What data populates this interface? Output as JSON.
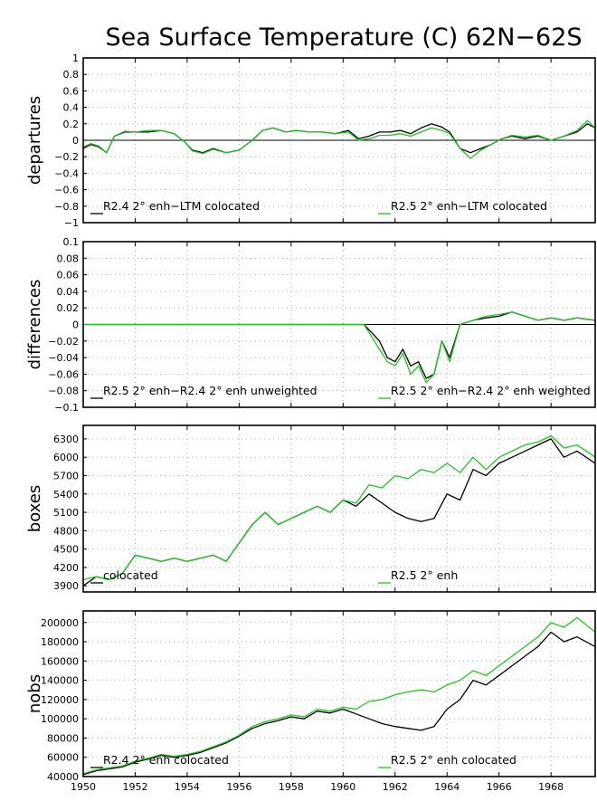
{
  "title": "Sea Surface Temperature (C) 62N−62S",
  "colors": {
    "s1": "#000000",
    "s2": "#22c422",
    "grid": "#9a9a9a"
  },
  "x_ticks": [
    "1950",
    "1952",
    "1954",
    "1956",
    "1958",
    "1960",
    "1962",
    "1964",
    "1966",
    "1968"
  ],
  "chart_data": [
    {
      "type": "line",
      "ylabel": "departures",
      "ylim": [
        -1,
        1
      ],
      "xlim": [
        1950,
        1969.7
      ],
      "yticks": [
        "1",
        "0.8",
        "0.6",
        "0.4",
        "0.2",
        "0",
        "−0.2",
        "−0.4",
        "−0.6",
        "−0.8",
        "−1"
      ],
      "yvals": [
        1,
        0.8,
        0.6,
        0.4,
        0.2,
        0,
        -0.2,
        -0.4,
        -0.6,
        -0.8,
        -1
      ],
      "zero_line": true,
      "grid": true,
      "series": [
        {
          "name": "R2.4 2° enh−LTM colocated",
          "x": [
            1950,
            1950.3,
            1950.6,
            1950.9,
            1951.2,
            1951.6,
            1952,
            1952.5,
            1953,
            1953.5,
            1953.9,
            1954.2,
            1954.6,
            1955,
            1955.5,
            1956,
            1956.5,
            1956.9,
            1957.3,
            1957.8,
            1958.2,
            1958.7,
            1959.2,
            1959.7,
            1960.2,
            1960.6,
            1961,
            1961.4,
            1961.8,
            1962.2,
            1962.6,
            1963,
            1963.4,
            1963.8,
            1964.1,
            1964.5,
            1964.9,
            1965.3,
            1965.7,
            1966.1,
            1966.5,
            1967,
            1967.5,
            1968,
            1968.5,
            1969,
            1969.4,
            1969.7
          ],
          "values": [
            -0.1,
            -0.05,
            -0.08,
            -0.15,
            0.05,
            0.1,
            0.1,
            0.1,
            0.12,
            0.08,
            -0.02,
            -0.12,
            -0.15,
            -0.1,
            -0.15,
            -0.12,
            0.0,
            0.12,
            0.15,
            0.1,
            0.12,
            0.1,
            0.1,
            0.08,
            0.12,
            0.02,
            0.05,
            0.1,
            0.1,
            0.12,
            0.08,
            0.15,
            0.2,
            0.16,
            0.1,
            -0.1,
            -0.15,
            -0.1,
            -0.05,
            0.02,
            0.05,
            0.02,
            0.05,
            0.0,
            0.05,
            0.1,
            0.2,
            0.15
          ]
        },
        {
          "name": "R2.5 2° enh−LTM colocated",
          "x": [
            1950,
            1950.3,
            1950.6,
            1950.9,
            1951.2,
            1951.6,
            1952,
            1952.5,
            1953,
            1953.5,
            1953.9,
            1954.2,
            1954.6,
            1955,
            1955.5,
            1956,
            1956.5,
            1956.9,
            1957.3,
            1957.8,
            1958.2,
            1958.7,
            1959.2,
            1959.7,
            1960.2,
            1960.6,
            1961,
            1961.4,
            1961.8,
            1962.2,
            1962.6,
            1963,
            1963.4,
            1963.8,
            1964.1,
            1964.5,
            1964.9,
            1965.3,
            1965.7,
            1966.1,
            1966.5,
            1967,
            1967.5,
            1968,
            1968.5,
            1969,
            1969.4,
            1969.7
          ],
          "values": [
            -0.08,
            -0.04,
            -0.07,
            -0.15,
            0.05,
            0.11,
            0.1,
            0.12,
            0.12,
            0.08,
            -0.02,
            -0.13,
            -0.16,
            -0.11,
            -0.15,
            -0.12,
            0.0,
            0.12,
            0.15,
            0.1,
            0.12,
            0.1,
            0.1,
            0.08,
            0.1,
            0.0,
            0.02,
            0.06,
            0.06,
            0.08,
            0.05,
            0.1,
            0.15,
            0.12,
            0.08,
            -0.1,
            -0.22,
            -0.12,
            -0.05,
            0.02,
            0.06,
            0.04,
            0.06,
            0.0,
            0.05,
            0.12,
            0.24,
            0.15
          ]
        }
      ]
    },
    {
      "type": "line",
      "ylabel": "differences",
      "ylim": [
        -0.1,
        0.1
      ],
      "xlim": [
        1950,
        1969.7
      ],
      "yticks": [
        "0.1",
        "0.08",
        "0.06",
        "0.04",
        "0.02",
        "0",
        "−0.02",
        "−0.04",
        "−0.06",
        "−0.08",
        "−0.1"
      ],
      "yvals": [
        0.1,
        0.08,
        0.06,
        0.04,
        0.02,
        0,
        -0.02,
        -0.04,
        -0.06,
        -0.08,
        -0.1
      ],
      "zero_line": true,
      "grid": true,
      "series": [
        {
          "name": "R2.5 2° enh−R2.4 2° enh unweighted",
          "x": [
            1950,
            1951,
            1952,
            1953,
            1954,
            1955,
            1956,
            1957,
            1958,
            1959,
            1960,
            1960.8,
            1961.1,
            1961.4,
            1961.7,
            1962,
            1962.3,
            1962.6,
            1962.9,
            1963.2,
            1963.5,
            1963.8,
            1964.1,
            1964.5,
            1965,
            1965.5,
            1966,
            1966.5,
            1967,
            1967.5,
            1968,
            1968.5,
            1969,
            1969.7
          ],
          "values": [
            0.0,
            0.0,
            0.0,
            0.0,
            0.0,
            0.0,
            0.0,
            0.0,
            0.0,
            0.0,
            0.0,
            0.0,
            -0.01,
            -0.02,
            -0.04,
            -0.045,
            -0.03,
            -0.05,
            -0.045,
            -0.065,
            -0.06,
            -0.02,
            -0.04,
            0.0,
            0.005,
            0.008,
            0.01,
            0.015,
            0.01,
            0.005,
            0.008,
            0.005,
            0.008,
            0.005
          ]
        },
        {
          "name": "R2.5 2° enh−R2.4 2° enh weighted",
          "x": [
            1950,
            1951,
            1952,
            1953,
            1954,
            1955,
            1956,
            1957,
            1958,
            1959,
            1960,
            1960.8,
            1961.1,
            1961.4,
            1961.7,
            1962,
            1962.3,
            1962.6,
            1962.9,
            1963.2,
            1963.5,
            1963.8,
            1964.1,
            1964.5,
            1965,
            1965.5,
            1966,
            1966.5,
            1967,
            1967.5,
            1968,
            1968.5,
            1969,
            1969.7
          ],
          "values": [
            0.0,
            0.0,
            0.0,
            0.0,
            0.0,
            0.0,
            0.0,
            0.0,
            0.0,
            0.0,
            0.0,
            0.0,
            -0.015,
            -0.03,
            -0.045,
            -0.05,
            -0.035,
            -0.06,
            -0.05,
            -0.07,
            -0.06,
            -0.02,
            -0.045,
            0.0,
            0.005,
            0.01,
            0.012,
            0.015,
            0.01,
            0.005,
            0.008,
            0.005,
            0.008,
            0.005
          ]
        }
      ]
    },
    {
      "type": "line",
      "ylabel": "boxes",
      "ylim": [
        3800,
        6520
      ],
      "xlim": [
        1950,
        1969.7
      ],
      "yticks": [
        "6300",
        "6000",
        "5700",
        "5400",
        "5100",
        "4800",
        "4500",
        "4200",
        "3900"
      ],
      "yvals": [
        6300,
        6000,
        5700,
        5400,
        5100,
        4800,
        4500,
        4200,
        3900
      ],
      "zero_line": false,
      "grid": true,
      "series": [
        {
          "name": "colocated",
          "x": [
            1950,
            1950.5,
            1951,
            1951.5,
            1952,
            1952.5,
            1953,
            1953.5,
            1954,
            1954.5,
            1955,
            1955.5,
            1956,
            1956.5,
            1957,
            1957.5,
            1958,
            1958.5,
            1959,
            1959.5,
            1960,
            1960.5,
            1961,
            1961.5,
            1962,
            1962.5,
            1963,
            1963.5,
            1964,
            1964.5,
            1965,
            1965.5,
            1966,
            1966.5,
            1967,
            1967.5,
            1968,
            1968.5,
            1969,
            1969.7
          ],
          "values": [
            3900,
            4050,
            4000,
            4100,
            4400,
            4350,
            4300,
            4350,
            4300,
            4350,
            4400,
            4300,
            4600,
            4900,
            5100,
            4900,
            5000,
            5100,
            5200,
            5100,
            5300,
            5200,
            5400,
            5250,
            5100,
            5000,
            4950,
            5000,
            5400,
            5300,
            5800,
            5700,
            5900,
            6000,
            6100,
            6200,
            6300,
            6000,
            6100,
            5900
          ]
        },
        {
          "name": "R2.5 2° enh",
          "x": [
            1950,
            1950.5,
            1951,
            1951.5,
            1952,
            1952.5,
            1953,
            1953.5,
            1954,
            1954.5,
            1955,
            1955.5,
            1956,
            1956.5,
            1957,
            1957.5,
            1958,
            1958.5,
            1959,
            1959.5,
            1960,
            1960.5,
            1961,
            1961.5,
            1962,
            1962.5,
            1963,
            1963.5,
            1964,
            1964.5,
            1965,
            1965.5,
            1966,
            1966.5,
            1967,
            1967.5,
            1968,
            1968.5,
            1969,
            1969.7
          ],
          "values": [
            4000,
            4050,
            4000,
            4100,
            4400,
            4350,
            4300,
            4350,
            4300,
            4350,
            4400,
            4300,
            4600,
            4900,
            5100,
            4900,
            5000,
            5100,
            5200,
            5100,
            5300,
            5250,
            5550,
            5500,
            5700,
            5650,
            5800,
            5750,
            5900,
            5750,
            6000,
            5800,
            6000,
            6100,
            6200,
            6250,
            6350,
            6150,
            6200,
            6000
          ]
        }
      ]
    },
    {
      "type": "line",
      "ylabel": "nobs",
      "ylim": [
        40000,
        212000
      ],
      "xlim": [
        1950,
        1969.7
      ],
      "yticks": [
        "200000",
        "180000",
        "160000",
        "140000",
        "120000",
        "100000",
        "80000",
        "60000",
        "40000"
      ],
      "yvals": [
        200000,
        180000,
        160000,
        140000,
        120000,
        100000,
        80000,
        60000,
        40000
      ],
      "zero_line": false,
      "grid": true,
      "series": [
        {
          "name": "R2.4 2° enh colocated",
          "x": [
            1950,
            1950.5,
            1951,
            1951.5,
            1952,
            1952.5,
            1953,
            1953.5,
            1954,
            1954.5,
            1955,
            1955.5,
            1956,
            1956.5,
            1957,
            1957.5,
            1958,
            1958.5,
            1959,
            1959.5,
            1960,
            1960.5,
            1961,
            1961.5,
            1962,
            1962.5,
            1963,
            1963.5,
            1964,
            1964.5,
            1965,
            1965.5,
            1966,
            1966.5,
            1967,
            1967.5,
            1968,
            1968.5,
            1969,
            1969.7
          ],
          "values": [
            42000,
            46000,
            48000,
            50000,
            55000,
            58000,
            62000,
            60000,
            62000,
            65000,
            70000,
            75000,
            82000,
            90000,
            95000,
            98000,
            102000,
            100000,
            108000,
            106000,
            110000,
            105000,
            100000,
            95000,
            92000,
            90000,
            88000,
            92000,
            110000,
            120000,
            140000,
            135000,
            145000,
            155000,
            165000,
            175000,
            190000,
            180000,
            185000,
            175000
          ]
        },
        {
          "name": "R2.5 2° enh colocated",
          "x": [
            1950,
            1950.5,
            1951,
            1951.5,
            1952,
            1952.5,
            1953,
            1953.5,
            1954,
            1954.5,
            1955,
            1955.5,
            1956,
            1956.5,
            1957,
            1957.5,
            1958,
            1958.5,
            1959,
            1959.5,
            1960,
            1960.5,
            1961,
            1961.5,
            1962,
            1962.5,
            1963,
            1963.5,
            1964,
            1964.5,
            1965,
            1965.5,
            1966,
            1966.5,
            1967,
            1967.5,
            1968,
            1968.5,
            1969,
            1969.7
          ],
          "values": [
            43000,
            47000,
            49000,
            51000,
            56000,
            59000,
            63000,
            61000,
            63000,
            66000,
            71000,
            76000,
            83000,
            92000,
            97000,
            100000,
            104000,
            102000,
            110000,
            108000,
            112000,
            110000,
            118000,
            120000,
            125000,
            128000,
            130000,
            128000,
            135000,
            140000,
            150000,
            145000,
            155000,
            165000,
            175000,
            185000,
            200000,
            195000,
            205000,
            190000
          ]
        }
      ]
    }
  ]
}
